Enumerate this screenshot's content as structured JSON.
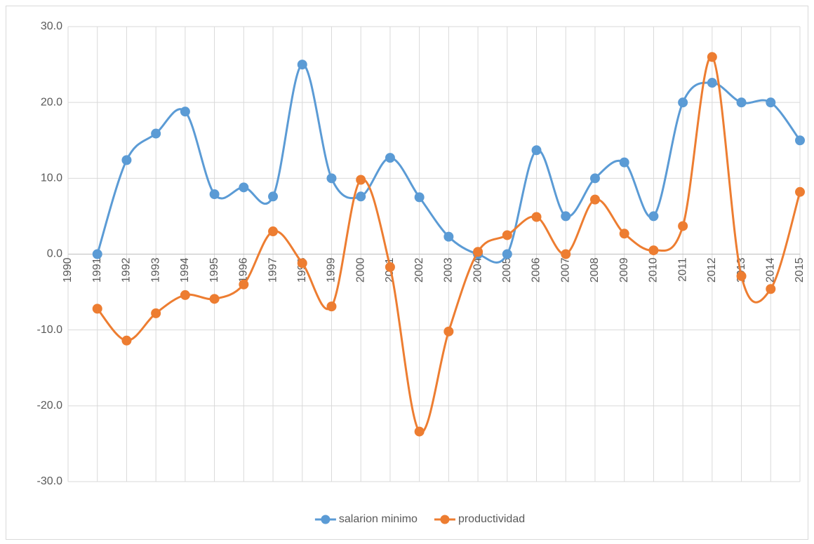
{
  "chart_data": {
    "type": "line",
    "smooth": true,
    "categories": [
      "1990",
      "1991",
      "1992",
      "1993",
      "1994",
      "1995",
      "1996",
      "1997",
      "1998",
      "1999",
      "2000",
      "2001",
      "2002",
      "2003",
      "2004",
      "2005",
      "2006",
      "2007",
      "2008",
      "2009",
      "2010",
      "2011",
      "2012",
      "2013",
      "2014",
      "2015"
    ],
    "series": [
      {
        "name": "salarion minimo",
        "color": "#5b9bd5",
        "values": [
          null,
          0,
          12.4,
          15.9,
          18.8,
          7.9,
          8.8,
          7.6,
          25.0,
          10.0,
          7.6,
          12.7,
          7.5,
          2.3,
          0,
          0,
          13.7,
          5.0,
          10.0,
          12.1,
          5.0,
          20.0,
          22.6,
          20.0,
          20.0,
          15.0
        ]
      },
      {
        "name": "productividad",
        "color": "#ed7d31",
        "values": [
          null,
          -7.2,
          -11.4,
          -7.8,
          -5.4,
          -5.9,
          -4.0,
          3.0,
          -1.2,
          -6.9,
          9.8,
          -1.7,
          -23.4,
          -10.2,
          0.3,
          2.5,
          4.9,
          0,
          7.2,
          2.7,
          0.5,
          3.7,
          26.0,
          -2.9,
          -4.6,
          8.2
        ]
      }
    ],
    "ylim": [
      -30,
      30
    ],
    "yticks": [
      {
        "value": -30,
        "label": "-30.0"
      },
      {
        "value": -20,
        "label": "-20.0"
      },
      {
        "value": -10,
        "label": "-10.0"
      },
      {
        "value": 0,
        "label": "0.0"
      },
      {
        "value": 10,
        "label": "10.0"
      },
      {
        "value": 20,
        "label": "20.0"
      },
      {
        "value": 30,
        "label": "30.0"
      }
    ],
    "grid": true,
    "legend": "bottom"
  }
}
